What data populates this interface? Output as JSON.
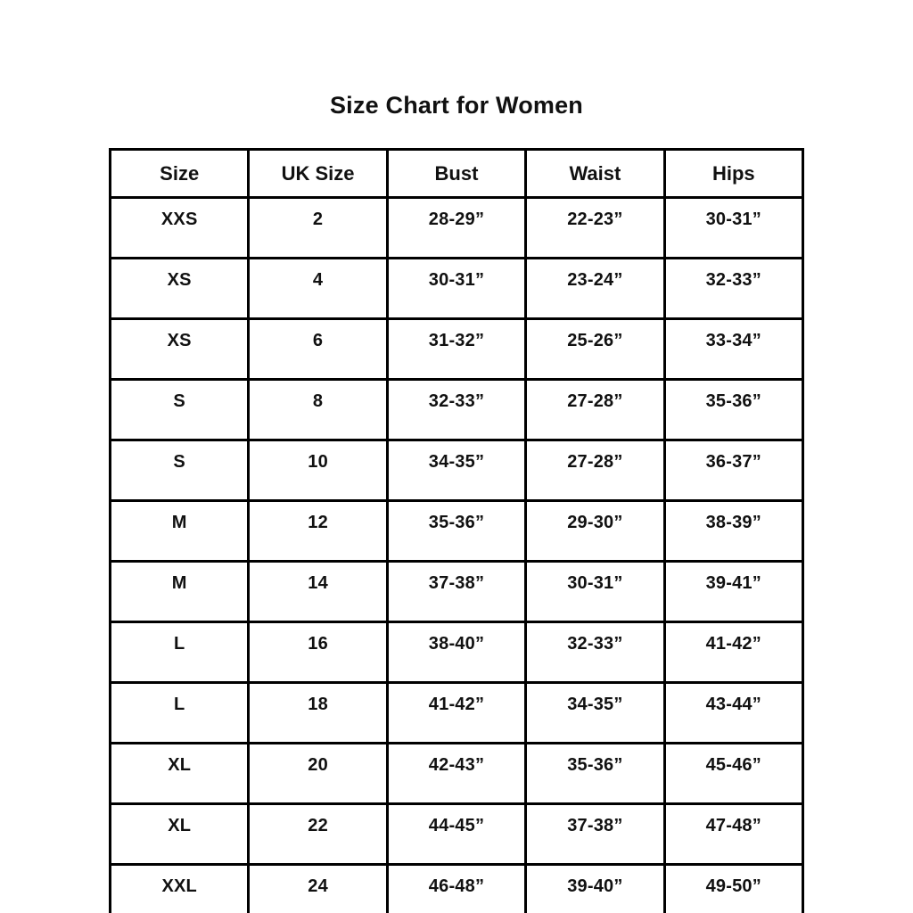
{
  "page": {
    "title": "Size Chart for Women"
  },
  "chart_data": {
    "type": "table",
    "title": "Size Chart for Women",
    "columns": [
      "Size",
      "UK Size",
      "Bust",
      "Waist",
      "Hips"
    ],
    "rows": [
      [
        "XXS",
        "2",
        "28-29”",
        "22-23”",
        "30-31”"
      ],
      [
        "XS",
        "4",
        "30-31”",
        "23-24”",
        "32-33”"
      ],
      [
        "XS",
        "6",
        "31-32”",
        "25-26”",
        "33-34”"
      ],
      [
        "S",
        "8",
        "32-33”",
        "27-28”",
        "35-36”"
      ],
      [
        "S",
        "10",
        "34-35”",
        "27-28”",
        "36-37”"
      ],
      [
        "M",
        "12",
        "35-36”",
        "29-30”",
        "38-39”"
      ],
      [
        "M",
        "14",
        "37-38”",
        "30-31”",
        "39-41”"
      ],
      [
        "L",
        "16",
        "38-40”",
        "32-33”",
        "41-42”"
      ],
      [
        "L",
        "18",
        "41-42”",
        "34-35”",
        "43-44”"
      ],
      [
        "XL",
        "20",
        "42-43”",
        "35-36”",
        "45-46”"
      ],
      [
        "XL",
        "22",
        "44-45”",
        "37-38”",
        "47-48”"
      ],
      [
        "XXL",
        "24",
        "46-48”",
        "39-40”",
        "49-50”"
      ]
    ],
    "layout": {
      "grid": "full-borders",
      "text_color": "#111111",
      "border_color": "#000000",
      "background": "#ffffff"
    }
  }
}
